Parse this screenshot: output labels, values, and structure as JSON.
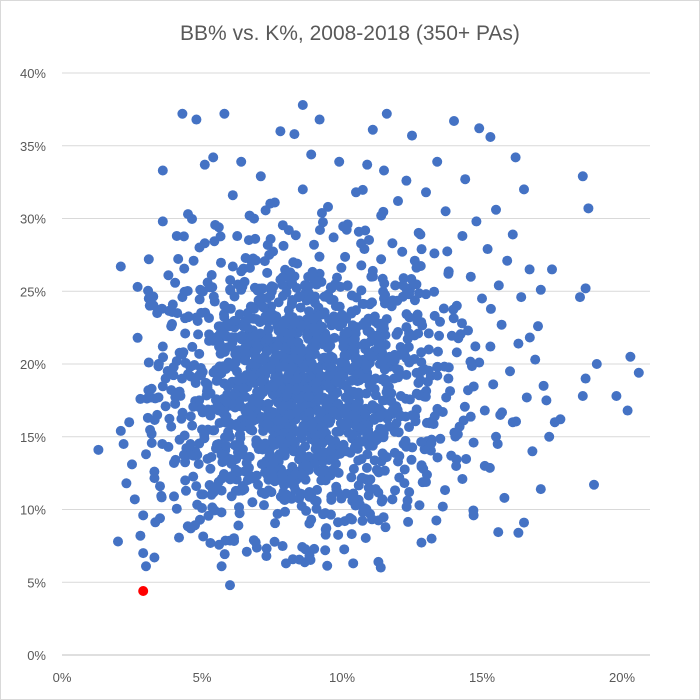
{
  "chart_data": {
    "type": "scatter",
    "title": "BB% vs. K%, 2008-2018 (350+ PAs)",
    "xlabel": "",
    "ylabel": "",
    "xlim": [
      0,
      0.21
    ],
    "ylim": [
      0,
      0.4
    ],
    "x_ticks": [
      "0%",
      "5%",
      "10%",
      "15%",
      "20%"
    ],
    "x_tick_values": [
      0,
      0.05,
      0.1,
      0.15,
      0.2
    ],
    "y_ticks": [
      "0%",
      "5%",
      "10%",
      "15%",
      "20%",
      "25%",
      "30%",
      "35%",
      "40%"
    ],
    "y_tick_values": [
      0,
      0.05,
      0.1,
      0.15,
      0.2,
      0.25,
      0.3,
      0.35,
      0.4
    ],
    "grid": "horizontal",
    "legend": "none",
    "colors": {
      "series": "#4472c4",
      "highlight": "#ff0000"
    },
    "highlight_point": {
      "x": 0.029,
      "y": 0.044
    },
    "series": [
      {
        "points": [
          [
            0.013,
            0.141
          ],
          [
            0.02,
            0.078
          ],
          [
            0.021,
            0.154
          ],
          [
            0.021,
            0.267
          ],
          [
            0.022,
            0.145
          ],
          [
            0.023,
            0.118
          ],
          [
            0.024,
            0.16
          ],
          [
            0.025,
            0.131
          ],
          [
            0.026,
            0.107
          ],
          [
            0.027,
            0.253
          ],
          [
            0.027,
            0.218
          ],
          [
            0.028,
            0.176
          ],
          [
            0.028,
            0.082
          ],
          [
            0.029,
            0.096
          ],
          [
            0.029,
            0.07
          ],
          [
            0.03,
            0.061
          ],
          [
            0.03,
            0.138
          ],
          [
            0.031,
            0.272
          ],
          [
            0.031,
            0.245
          ],
          [
            0.031,
            0.201
          ],
          [
            0.032,
            0.183
          ],
          [
            0.032,
            0.152
          ],
          [
            0.033,
            0.126
          ],
          [
            0.033,
            0.067
          ],
          [
            0.034,
            0.235
          ],
          [
            0.034,
            0.165
          ],
          [
            0.035,
            0.116
          ],
          [
            0.035,
            0.094
          ],
          [
            0.036,
            0.333
          ],
          [
            0.036,
            0.298
          ],
          [
            0.036,
            0.212
          ],
          [
            0.037,
            0.19
          ],
          [
            0.037,
            0.171
          ],
          [
            0.038,
            0.143
          ],
          [
            0.038,
            0.261
          ],
          [
            0.039,
            0.226
          ],
          [
            0.039,
            0.157
          ],
          [
            0.04,
            0.132
          ],
          [
            0.04,
            0.109
          ],
          [
            0.041,
            0.288
          ],
          [
            0.041,
            0.202
          ],
          [
            0.042,
            0.181
          ],
          [
            0.042,
            0.148
          ],
          [
            0.043,
            0.372
          ],
          [
            0.043,
            0.246
          ],
          [
            0.044,
            0.221
          ],
          [
            0.044,
            0.12
          ],
          [
            0.045,
            0.303
          ],
          [
            0.045,
            0.193
          ],
          [
            0.046,
            0.164
          ],
          [
            0.046,
            0.087
          ],
          [
            0.047,
            0.271
          ],
          [
            0.047,
            0.137
          ],
          [
            0.048,
            0.368
          ],
          [
            0.048,
            0.232
          ],
          [
            0.049,
            0.207
          ],
          [
            0.049,
            0.175
          ],
          [
            0.05,
            0.155
          ],
          [
            0.05,
            0.101
          ],
          [
            0.051,
            0.337
          ],
          [
            0.051,
            0.283
          ],
          [
            0.052,
            0.256
          ],
          [
            0.052,
            0.186
          ],
          [
            0.053,
            0.128
          ],
          [
            0.053,
            0.077
          ],
          [
            0.054,
            0.342
          ],
          [
            0.054,
            0.216
          ],
          [
            0.055,
            0.196
          ],
          [
            0.055,
            0.142
          ],
          [
            0.056,
            0.294
          ],
          [
            0.056,
            0.168
          ],
          [
            0.057,
            0.113
          ],
          [
            0.057,
            0.061
          ],
          [
            0.058,
            0.372
          ],
          [
            0.058,
            0.24
          ],
          [
            0.059,
            0.228
          ],
          [
            0.059,
            0.179
          ],
          [
            0.06,
            0.15
          ],
          [
            0.06,
            0.048
          ],
          [
            0.061,
            0.316
          ],
          [
            0.061,
            0.267
          ],
          [
            0.062,
            0.209
          ],
          [
            0.062,
            0.124
          ],
          [
            0.063,
            0.089
          ],
          [
            0.064,
            0.339
          ],
          [
            0.064,
            0.251
          ],
          [
            0.065,
            0.191
          ],
          [
            0.065,
            0.16
          ],
          [
            0.066,
            0.136
          ],
          [
            0.066,
            0.071
          ],
          [
            0.067,
            0.302
          ],
          [
            0.067,
            0.222
          ],
          [
            0.068,
            0.173
          ],
          [
            0.068,
            0.105
          ],
          [
            0.069,
            0.286
          ],
          [
            0.069,
            0.198
          ],
          [
            0.07,
            0.146
          ],
          [
            0.07,
            0.117
          ],
          [
            0.071,
            0.329
          ],
          [
            0.071,
            0.243
          ],
          [
            0.072,
            0.212
          ],
          [
            0.072,
            0.184
          ],
          [
            0.073,
            0.158
          ],
          [
            0.073,
            0.068
          ],
          [
            0.074,
            0.275
          ],
          [
            0.074,
            0.231
          ],
          [
            0.075,
            0.167
          ],
          [
            0.075,
            0.13
          ],
          [
            0.076,
            0.311
          ],
          [
            0.076,
            0.204
          ],
          [
            0.077,
            0.189
          ],
          [
            0.077,
            0.097
          ],
          [
            0.078,
            0.36
          ],
          [
            0.078,
            0.258
          ],
          [
            0.079,
            0.216
          ],
          [
            0.079,
            0.151
          ],
          [
            0.08,
            0.122
          ],
          [
            0.08,
            0.063
          ],
          [
            0.081,
            0.292
          ],
          [
            0.081,
            0.237
          ],
          [
            0.082,
            0.197
          ],
          [
            0.082,
            0.172
          ],
          [
            0.083,
            0.14
          ],
          [
            0.083,
            0.358
          ],
          [
            0.084,
            0.269
          ],
          [
            0.084,
            0.224
          ],
          [
            0.085,
            0.182
          ],
          [
            0.085,
            0.111
          ],
          [
            0.086,
            0.378
          ],
          [
            0.086,
            0.32
          ],
          [
            0.087,
            0.249
          ],
          [
            0.087,
            0.205
          ],
          [
            0.088,
            0.163
          ],
          [
            0.088,
            0.134
          ],
          [
            0.089,
            0.093
          ],
          [
            0.089,
            0.344
          ],
          [
            0.09,
            0.282
          ],
          [
            0.09,
            0.219
          ],
          [
            0.091,
            0.188
          ],
          [
            0.091,
            0.156
          ],
          [
            0.092,
            0.368
          ],
          [
            0.092,
            0.262
          ],
          [
            0.093,
            0.234
          ],
          [
            0.093,
            0.177
          ],
          [
            0.094,
            0.127
          ],
          [
            0.094,
            0.072
          ],
          [
            0.095,
            0.308
          ],
          [
            0.095,
            0.211
          ],
          [
            0.096,
            0.195
          ],
          [
            0.096,
            0.147
          ],
          [
            0.097,
            0.287
          ],
          [
            0.097,
            0.244
          ],
          [
            0.098,
            0.169
          ],
          [
            0.098,
            0.114
          ],
          [
            0.099,
            0.339
          ],
          [
            0.099,
            0.226
          ],
          [
            0.1,
            0.186
          ],
          [
            0.1,
            0.159
          ],
          [
            0.101,
            0.092
          ],
          [
            0.102,
            0.296
          ],
          [
            0.102,
            0.254
          ],
          [
            0.103,
            0.208
          ],
          [
            0.103,
            0.139
          ],
          [
            0.104,
            0.063
          ],
          [
            0.105,
            0.318
          ],
          [
            0.105,
            0.237
          ],
          [
            0.106,
            0.198
          ],
          [
            0.106,
            0.174
          ],
          [
            0.107,
            0.121
          ],
          [
            0.108,
            0.279
          ],
          [
            0.108,
            0.214
          ],
          [
            0.109,
            0.337
          ],
          [
            0.109,
            0.151
          ],
          [
            0.11,
            0.097
          ],
          [
            0.111,
            0.361
          ],
          [
            0.111,
            0.264
          ],
          [
            0.112,
            0.229
          ],
          [
            0.112,
            0.19
          ],
          [
            0.113,
            0.064
          ],
          [
            0.114,
            0.302
          ],
          [
            0.114,
            0.166
          ],
          [
            0.115,
            0.333
          ],
          [
            0.115,
            0.245
          ],
          [
            0.116,
            0.372
          ],
          [
            0.116,
            0.136
          ],
          [
            0.117,
            0.205
          ],
          [
            0.118,
            0.283
          ],
          [
            0.118,
            0.107
          ],
          [
            0.119,
            0.254
          ],
          [
            0.12,
            0.312
          ],
          [
            0.12,
            0.222
          ],
          [
            0.121,
            0.178
          ],
          [
            0.122,
            0.259
          ],
          [
            0.122,
            0.145
          ],
          [
            0.123,
            0.326
          ],
          [
            0.124,
            0.201
          ],
          [
            0.124,
            0.112
          ],
          [
            0.125,
            0.357
          ],
          [
            0.126,
            0.271
          ],
          [
            0.126,
            0.165
          ],
          [
            0.127,
            0.234
          ],
          [
            0.128,
            0.289
          ],
          [
            0.128,
            0.189
          ],
          [
            0.129,
            0.128
          ],
          [
            0.13,
            0.318
          ],
          [
            0.13,
            0.248
          ],
          [
            0.131,
            0.21
          ],
          [
            0.132,
            0.148
          ],
          [
            0.132,
            0.08
          ],
          [
            0.133,
            0.276
          ],
          [
            0.134,
            0.198
          ],
          [
            0.134,
            0.339
          ],
          [
            0.135,
            0.229
          ],
          [
            0.136,
            0.167
          ],
          [
            0.136,
            0.102
          ],
          [
            0.137,
            0.305
          ],
          [
            0.138,
            0.262
          ],
          [
            0.138,
            0.19
          ],
          [
            0.139,
            0.137
          ],
          [
            0.14,
            0.367
          ],
          [
            0.141,
            0.24
          ],
          [
            0.141,
            0.208
          ],
          [
            0.142,
            0.157
          ],
          [
            0.143,
            0.288
          ],
          [
            0.143,
            0.121
          ],
          [
            0.144,
            0.327
          ],
          [
            0.145,
            0.223
          ],
          [
            0.145,
            0.182
          ],
          [
            0.146,
            0.26
          ],
          [
            0.147,
            0.146
          ],
          [
            0.147,
            0.096
          ],
          [
            0.148,
            0.298
          ],
          [
            0.149,
            0.201
          ],
          [
            0.149,
            0.362
          ],
          [
            0.15,
            0.245
          ],
          [
            0.151,
            0.168
          ],
          [
            0.151,
            0.13
          ],
          [
            0.152,
            0.279
          ],
          [
            0.153,
            0.356
          ],
          [
            0.153,
            0.212
          ],
          [
            0.154,
            0.186
          ],
          [
            0.155,
            0.306
          ],
          [
            0.155,
            0.15
          ],
          [
            0.156,
            0.254
          ],
          [
            0.157,
            0.227
          ],
          [
            0.158,
            0.108
          ],
          [
            0.159,
            0.271
          ],
          [
            0.16,
            0.195
          ],
          [
            0.161,
            0.289
          ],
          [
            0.161,
            0.16
          ],
          [
            0.162,
            0.342
          ],
          [
            0.163,
            0.214
          ],
          [
            0.163,
            0.084
          ],
          [
            0.164,
            0.246
          ],
          [
            0.165,
            0.32
          ],
          [
            0.165,
            0.091
          ],
          [
            0.166,
            0.177
          ],
          [
            0.167,
            0.265
          ],
          [
            0.168,
            0.14
          ],
          [
            0.169,
            0.203
          ],
          [
            0.17,
            0.226
          ],
          [
            0.171,
            0.114
          ],
          [
            0.171,
            0.251
          ],
          [
            0.172,
            0.185
          ],
          [
            0.173,
            0.175
          ],
          [
            0.174,
            0.15
          ],
          [
            0.175,
            0.265
          ],
          [
            0.176,
            0.16
          ],
          [
            0.178,
            0.162
          ],
          [
            0.185,
            0.246
          ],
          [
            0.186,
            0.178
          ],
          [
            0.186,
            0.329
          ],
          [
            0.187,
            0.19
          ],
          [
            0.187,
            0.252
          ],
          [
            0.188,
            0.307
          ],
          [
            0.19,
            0.117
          ],
          [
            0.191,
            0.2
          ],
          [
            0.198,
            0.178
          ],
          [
            0.202,
            0.168
          ],
          [
            0.203,
            0.205
          ],
          [
            0.206,
            0.194
          ]
        ]
      }
    ]
  }
}
